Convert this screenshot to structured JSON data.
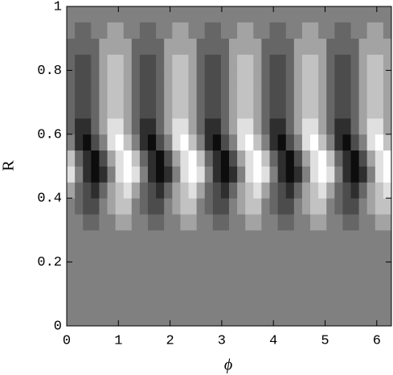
{
  "chart_data": {
    "type": "contour",
    "xlabel": "ϕ",
    "ylabel": "R",
    "xlim": [
      0,
      6.283
    ],
    "ylim": [
      0,
      1
    ],
    "xticks": [
      0,
      1,
      2,
      3,
      4,
      5,
      6
    ],
    "yticks": [
      0,
      0.2,
      0.4,
      0.6,
      0.8,
      1
    ],
    "levels": [
      -4,
      -3,
      -2,
      -1,
      0,
      1,
      2,
      3,
      4
    ],
    "colors": [
      "#0d0d0d",
      "#2e2e2e",
      "#4c4c4c",
      "#666666",
      "#808080",
      "#a3a3a3",
      "#c2c2c2",
      "#e0e0e0",
      "#ffffff"
    ],
    "x": [
      0.079,
      0.236,
      0.393,
      0.55,
      0.707,
      0.864,
      1.021,
      1.178,
      1.335,
      1.492,
      1.649,
      1.806,
      1.963,
      2.121,
      2.278,
      2.435,
      2.592,
      2.749,
      2.906,
      3.063,
      3.22,
      3.377,
      3.534,
      3.691,
      3.848,
      4.006,
      4.163,
      4.32,
      4.477,
      4.634,
      4.791,
      4.948,
      5.105,
      5.262,
      5.419,
      5.576,
      5.733,
      5.89,
      6.048,
      6.205
    ],
    "y": [
      0.325,
      0.375,
      0.425,
      0.475,
      0.525,
      0.575,
      0.625,
      0.675,
      0.725,
      0.775,
      0.825,
      0.875,
      0.925
    ],
    "z": [
      [
        0,
        0,
        -1,
        -1,
        0,
        0,
        1,
        1,
        0,
        0,
        -1,
        -1,
        0,
        0,
        1,
        1,
        0,
        0,
        -1,
        -1,
        0,
        0,
        1,
        1,
        0,
        0,
        -1,
        -1,
        0,
        0,
        1,
        1,
        0,
        0,
        -1,
        -1,
        0,
        0,
        1,
        1
      ],
      [
        0,
        -1,
        -2,
        -2,
        0,
        1,
        2,
        2,
        0,
        -1,
        -2,
        -2,
        0,
        1,
        2,
        2,
        0,
        -1,
        -2,
        -2,
        0,
        1,
        2,
        2,
        0,
        -1,
        -2,
        -2,
        0,
        1,
        2,
        2,
        0,
        -1,
        -2,
        -2,
        0,
        1,
        2,
        2
      ],
      [
        1,
        -1,
        -2,
        -3,
        -1,
        1,
        2,
        3,
        1,
        -1,
        -2,
        -3,
        -1,
        1,
        2,
        3,
        1,
        -1,
        -2,
        -3,
        -1,
        1,
        2,
        3,
        1,
        -1,
        -2,
        -3,
        -1,
        1,
        2,
        3,
        1,
        -1,
        -2,
        -3,
        -1,
        1,
        2,
        3
      ],
      [
        3,
        0,
        -3,
        -4,
        -3,
        0,
        3,
        4,
        3,
        0,
        -3,
        -4,
        -3,
        0,
        3,
        4,
        3,
        0,
        -3,
        -4,
        -3,
        0,
        3,
        4,
        3,
        0,
        -3,
        -4,
        -3,
        0,
        3,
        4,
        3,
        0,
        -3,
        -4,
        -3,
        0,
        3,
        4
      ],
      [
        2,
        -1,
        -3,
        -4,
        -2,
        1,
        3,
        4,
        2,
        -1,
        -3,
        -4,
        -2,
        1,
        3,
        4,
        2,
        -1,
        -3,
        -4,
        -2,
        1,
        3,
        4,
        2,
        -1,
        -3,
        -4,
        -2,
        1,
        3,
        4,
        2,
        -1,
        -3,
        -4,
        -2,
        1,
        3,
        4
      ],
      [
        0,
        -3,
        -4,
        -2,
        0,
        3,
        4,
        2,
        0,
        -3,
        -4,
        -2,
        0,
        3,
        4,
        2,
        0,
        -3,
        -4,
        -2,
        0,
        3,
        4,
        2,
        0,
        -3,
        -4,
        -2,
        0,
        3,
        4,
        2,
        0,
        -3,
        -4,
        -2,
        0,
        3,
        4,
        2
      ],
      [
        -1,
        -3,
        -3,
        -1,
        1,
        3,
        3,
        1,
        -1,
        -3,
        -3,
        -1,
        1,
        3,
        3,
        1,
        -1,
        -3,
        -3,
        -1,
        1,
        3,
        3,
        1,
        -1,
        -3,
        -3,
        -1,
        1,
        3,
        3,
        1,
        -1,
        -3,
        -3,
        -1,
        1,
        3,
        3,
        1
      ],
      [
        -1,
        -2,
        -2,
        -1,
        1,
        2,
        2,
        1,
        -1,
        -2,
        -2,
        -1,
        1,
        2,
        2,
        1,
        -1,
        -2,
        -2,
        -1,
        1,
        2,
        2,
        1,
        -1,
        -2,
        -2,
        -1,
        1,
        2,
        2,
        1,
        -1,
        -2,
        -2,
        -1,
        1,
        2,
        2,
        1
      ],
      [
        -1,
        -2,
        -2,
        -1,
        1,
        2,
        2,
        1,
        -1,
        -2,
        -2,
        -1,
        1,
        2,
        2,
        1,
        -1,
        -2,
        -2,
        -1,
        1,
        2,
        2,
        1,
        -1,
        -2,
        -2,
        -1,
        1,
        2,
        2,
        1,
        -1,
        -2,
        -2,
        -1,
        1,
        2,
        2,
        1
      ],
      [
        -1,
        -2,
        -2,
        -1,
        1,
        2,
        2,
        1,
        -1,
        -2,
        -2,
        -1,
        1,
        2,
        2,
        1,
        -1,
        -2,
        -2,
        -1,
        1,
        2,
        2,
        1,
        -1,
        -2,
        -2,
        -1,
        1,
        2,
        2,
        1,
        -1,
        -2,
        -2,
        -1,
        1,
        2,
        2,
        1
      ],
      [
        -1,
        -2,
        -2,
        -1,
        1,
        2,
        2,
        1,
        -1,
        -2,
        -2,
        -1,
        1,
        2,
        2,
        1,
        -1,
        -2,
        -2,
        -1,
        1,
        2,
        2,
        1,
        -1,
        -2,
        -2,
        -1,
        1,
        2,
        2,
        1,
        -1,
        -2,
        -2,
        -1,
        1,
        2,
        2,
        1
      ],
      [
        -1,
        -1,
        -1,
        -1,
        1,
        1,
        1,
        1,
        -1,
        -1,
        -1,
        -1,
        1,
        1,
        1,
        1,
        -1,
        -1,
        -1,
        -1,
        1,
        1,
        1,
        1,
        -1,
        -1,
        -1,
        -1,
        1,
        1,
        1,
        1,
        -1,
        -1,
        -1,
        -1,
        1,
        1,
        1,
        1
      ],
      [
        0,
        -1,
        -1,
        0,
        0,
        1,
        1,
        0,
        0,
        -1,
        -1,
        0,
        0,
        1,
        1,
        0,
        0,
        -1,
        -1,
        0,
        0,
        1,
        1,
        0,
        0,
        -1,
        -1,
        0,
        0,
        1,
        1,
        0,
        0,
        -1,
        -1,
        0,
        0,
        1,
        1,
        0
      ]
    ]
  }
}
